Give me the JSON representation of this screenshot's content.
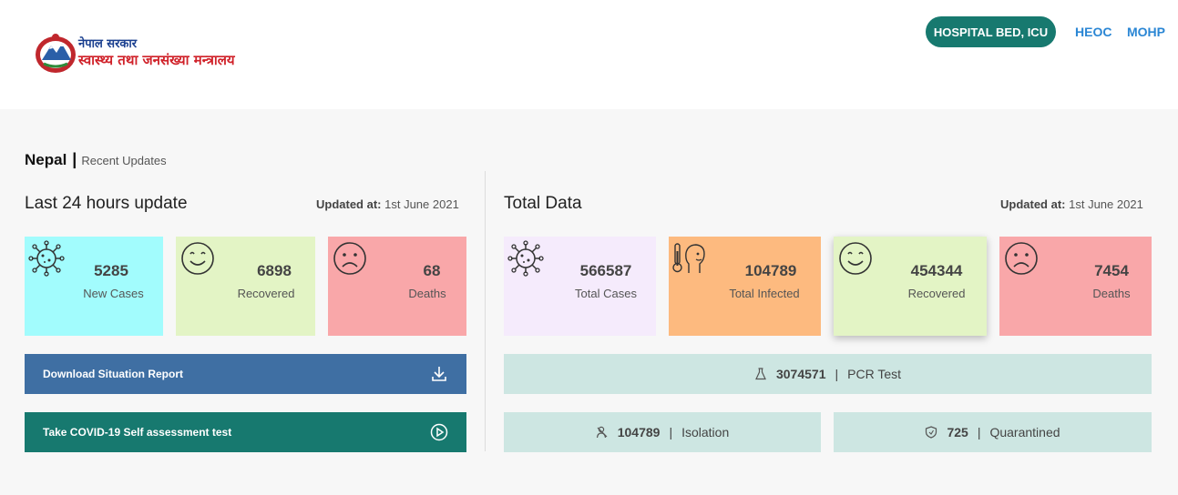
{
  "header": {
    "logo_line1": "नेपाल सरकार",
    "logo_line2": "स्वास्थ्य तथा जनसंख्या मन्त्रालय",
    "nav": {
      "hospital_bed": "HOSPITAL BED, ICU",
      "heoc": "HEOC",
      "mohp": "MOHP"
    }
  },
  "breadcrumb": {
    "title": "Nepal",
    "separator": "|",
    "subtitle": "Recent Updates"
  },
  "last24": {
    "title": "Last 24 hours update",
    "updated_label": "Updated at:",
    "updated_value": "1st June 2021",
    "cards": [
      {
        "value": "5285",
        "label": "New Cases",
        "icon": "virus-icon",
        "color": "#a2fcfd"
      },
      {
        "value": "6898",
        "label": "Recovered",
        "icon": "smile-icon",
        "color": "#e3f4c5"
      },
      {
        "value": "68",
        "label": "Deaths",
        "icon": "sad-icon",
        "color": "#f9a7a9"
      }
    ],
    "download_label": "Download Situation Report",
    "selftest_label": "Take COVID-19 Self assessment test"
  },
  "total": {
    "title": "Total Data",
    "updated_label": "Updated at:",
    "updated_value": "1st June 2021",
    "cards": [
      {
        "value": "566587",
        "label": "Total Cases",
        "icon": "virus-icon",
        "color": "#f5ebfc"
      },
      {
        "value": "104789",
        "label": "Total Infected",
        "icon": "fever-icon",
        "color": "#fdba7f"
      },
      {
        "value": "454344",
        "label": "Recovered",
        "icon": "smile-icon",
        "color": "#e3f4c5"
      },
      {
        "value": "7454",
        "label": "Deaths",
        "icon": "sad-icon",
        "color": "#f9a7a9"
      }
    ],
    "pcr": {
      "value": "3074571",
      "sep": "|",
      "label": "PCR Test"
    },
    "isolation": {
      "value": "104789",
      "sep": "|",
      "label": "Isolation"
    },
    "quarantined": {
      "value": "725",
      "sep": "|",
      "label": "Quarantined"
    }
  },
  "colors": {
    "teal": "#17796f",
    "blue": "#3f6fa3",
    "stat_bg": "#cde6e2",
    "link": "#2a86d4"
  }
}
